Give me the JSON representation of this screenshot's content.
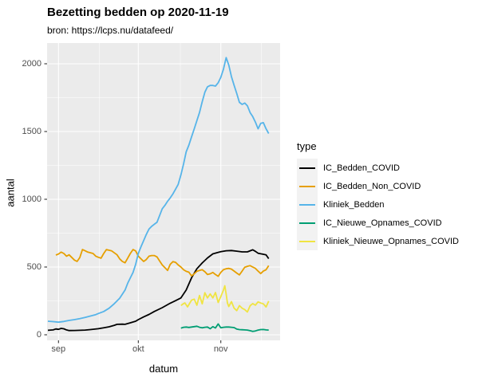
{
  "title": "Bezetting bedden op 2020-11-19",
  "subtitle": "bron: https://lcps.nu/datafeed/",
  "colors": {
    "background": "#FFFFFF",
    "panel_bg": "#EBEBEB",
    "grid": "#FFFFFF",
    "tick_mark": "#333333",
    "tick_label": "#4D4D4D",
    "legend_key_bg": "#F2F2F2",
    "text": "#000000"
  },
  "chart_data": {
    "type": "line",
    "title": "Bezetting bedden op 2020-11-19",
    "subtitle": "bron: https://lcps.nu/datafeed/",
    "xlabel": "datum",
    "ylabel": "aantal",
    "legend_title": "type",
    "legend_position": "right",
    "grid": true,
    "x_unit": "days since 2020-08-28",
    "xlim_days": [
      -0.3,
      87.3
    ],
    "ylim": [
      -40,
      2150
    ],
    "x_ticks": [
      {
        "label": "sep",
        "day": 4
      },
      {
        "label": "okt",
        "day": 34
      },
      {
        "label": "nov",
        "day": 65
      }
    ],
    "x_minor_days": [
      19.3,
      49.8,
      80.3
    ],
    "y_ticks": [
      0,
      500,
      1000,
      1500,
      2000
    ],
    "y_minor": [
      250,
      750,
      1250,
      1750
    ],
    "series": [
      {
        "name": "IC_Bedden_COVID",
        "color": "#000000",
        "points": [
          [
            0,
            33
          ],
          [
            2,
            36
          ],
          [
            3,
            43
          ],
          [
            4,
            40
          ],
          [
            5,
            47
          ],
          [
            6,
            44
          ],
          [
            7,
            36
          ],
          [
            8,
            31
          ],
          [
            10,
            32
          ],
          [
            12,
            33
          ],
          [
            14,
            35
          ],
          [
            16,
            38
          ],
          [
            19,
            45
          ],
          [
            21,
            52
          ],
          [
            23,
            59
          ],
          [
            25,
            70
          ],
          [
            26,
            77
          ],
          [
            28,
            78
          ],
          [
            29,
            77
          ],
          [
            31,
            88
          ],
          [
            33,
            100
          ],
          [
            34,
            112
          ],
          [
            36,
            132
          ],
          [
            38,
            150
          ],
          [
            40,
            172
          ],
          [
            43,
            200
          ],
          [
            46,
            233
          ],
          [
            48,
            252
          ],
          [
            50,
            272
          ],
          [
            52,
            330
          ],
          [
            54,
            420
          ],
          [
            56,
            487
          ],
          [
            58,
            530
          ],
          [
            60,
            567
          ],
          [
            62,
            597
          ],
          [
            64,
            608
          ],
          [
            65,
            613
          ],
          [
            67,
            620
          ],
          [
            69,
            622
          ],
          [
            71,
            617
          ],
          [
            73,
            612
          ],
          [
            75,
            612
          ],
          [
            77,
            627
          ],
          [
            78,
            616
          ],
          [
            79,
            602
          ],
          [
            81,
            594
          ],
          [
            82,
            590
          ],
          [
            83,
            562
          ]
        ]
      },
      {
        "name": "IC_Bedden_Non_COVID",
        "color": "#E69F00",
        "points": [
          [
            3,
            588
          ],
          [
            4,
            596
          ],
          [
            5,
            610
          ],
          [
            6,
            600
          ],
          [
            7,
            580
          ],
          [
            8,
            590
          ],
          [
            10,
            551
          ],
          [
            11,
            541
          ],
          [
            12,
            570
          ],
          [
            13,
            629
          ],
          [
            14,
            620
          ],
          [
            15,
            610
          ],
          [
            17,
            600
          ],
          [
            18,
            580
          ],
          [
            19,
            572
          ],
          [
            20,
            565
          ],
          [
            21,
            600
          ],
          [
            22,
            629
          ],
          [
            24,
            619
          ],
          [
            26,
            590
          ],
          [
            27,
            560
          ],
          [
            28,
            541
          ],
          [
            29,
            531
          ],
          [
            30,
            565
          ],
          [
            31,
            600
          ],
          [
            32,
            629
          ],
          [
            33,
            619
          ],
          [
            34,
            580
          ],
          [
            35,
            560
          ],
          [
            36,
            541
          ],
          [
            37,
            555
          ],
          [
            38,
            580
          ],
          [
            39,
            585
          ],
          [
            40,
            585
          ],
          [
            41,
            575
          ],
          [
            42,
            545
          ],
          [
            43,
            515
          ],
          [
            44,
            495
          ],
          [
            45,
            475
          ],
          [
            46,
            520
          ],
          [
            47,
            540
          ],
          [
            48,
            535
          ],
          [
            49,
            515
          ],
          [
            50,
            500
          ],
          [
            51,
            480
          ],
          [
            52,
            468
          ],
          [
            53,
            462
          ],
          [
            54,
            435
          ],
          [
            55,
            450
          ],
          [
            56,
            468
          ],
          [
            57,
            475
          ],
          [
            58,
            480
          ],
          [
            59,
            465
          ],
          [
            60,
            445
          ],
          [
            61,
            450
          ],
          [
            62,
            460
          ],
          [
            63,
            445
          ],
          [
            64,
            432
          ],
          [
            65,
            460
          ],
          [
            66,
            480
          ],
          [
            67,
            487
          ],
          [
            68,
            490
          ],
          [
            69,
            485
          ],
          [
            70,
            470
          ],
          [
            71,
            455
          ],
          [
            72,
            442
          ],
          [
            73,
            470
          ],
          [
            74,
            498
          ],
          [
            75,
            505
          ],
          [
            76,
            510
          ],
          [
            77,
            500
          ],
          [
            78,
            490
          ],
          [
            79,
            470
          ],
          [
            80,
            452
          ],
          [
            81,
            470
          ],
          [
            82,
            480
          ],
          [
            83,
            510
          ]
        ]
      },
      {
        "name": "Kliniek_Bedden",
        "color": "#56B4E9",
        "points": [
          [
            0,
            100
          ],
          [
            2,
            97
          ],
          [
            4,
            93
          ],
          [
            6,
            98
          ],
          [
            8,
            106
          ],
          [
            10,
            112
          ],
          [
            12,
            119
          ],
          [
            14,
            128
          ],
          [
            16,
            138
          ],
          [
            18,
            149
          ],
          [
            19,
            157
          ],
          [
            21,
            172
          ],
          [
            23,
            196
          ],
          [
            25,
            230
          ],
          [
            27,
            270
          ],
          [
            29,
            330
          ],
          [
            30,
            380
          ],
          [
            31,
            420
          ],
          [
            32,
            460
          ],
          [
            33,
            520
          ],
          [
            34,
            600
          ],
          [
            35,
            650
          ],
          [
            36,
            695
          ],
          [
            37,
            740
          ],
          [
            38,
            780
          ],
          [
            39,
            800
          ],
          [
            40,
            815
          ],
          [
            41,
            830
          ],
          [
            42,
            880
          ],
          [
            43,
            930
          ],
          [
            44,
            955
          ],
          [
            45,
            985
          ],
          [
            46,
            1010
          ],
          [
            47,
            1040
          ],
          [
            48,
            1075
          ],
          [
            49,
            1110
          ],
          [
            50,
            1180
          ],
          [
            51,
            1260
          ],
          [
            52,
            1350
          ],
          [
            53,
            1400
          ],
          [
            54,
            1460
          ],
          [
            55,
            1520
          ],
          [
            56,
            1580
          ],
          [
            57,
            1640
          ],
          [
            58,
            1720
          ],
          [
            59,
            1790
          ],
          [
            60,
            1830
          ],
          [
            61,
            1840
          ],
          [
            62,
            1840
          ],
          [
            63,
            1835
          ],
          [
            64,
            1860
          ],
          [
            65,
            1900
          ],
          [
            66,
            1960
          ],
          [
            67,
            2045
          ],
          [
            68,
            1990
          ],
          [
            69,
            1905
          ],
          [
            70,
            1840
          ],
          [
            71,
            1780
          ],
          [
            72,
            1715
          ],
          [
            73,
            1700
          ],
          [
            74,
            1710
          ],
          [
            75,
            1690
          ],
          [
            76,
            1640
          ],
          [
            77,
            1610
          ],
          [
            78,
            1570
          ],
          [
            79,
            1520
          ],
          [
            80,
            1560
          ],
          [
            81,
            1565
          ],
          [
            82,
            1520
          ],
          [
            83,
            1485
          ]
        ]
      },
      {
        "name": "IC_Nieuwe_Opnames_COVID",
        "color": "#009E73",
        "points": [
          [
            50,
            49
          ],
          [
            51,
            55
          ],
          [
            52,
            57
          ],
          [
            53,
            54
          ],
          [
            54,
            57
          ],
          [
            55,
            60
          ],
          [
            56,
            63
          ],
          [
            57,
            55
          ],
          [
            58,
            51
          ],
          [
            59,
            55
          ],
          [
            60,
            57
          ],
          [
            61,
            45
          ],
          [
            62,
            60
          ],
          [
            63,
            50
          ],
          [
            64,
            80
          ],
          [
            65,
            52
          ],
          [
            66,
            55
          ],
          [
            67,
            57
          ],
          [
            68,
            57
          ],
          [
            69,
            55
          ],
          [
            70,
            53
          ],
          [
            71,
            42
          ],
          [
            72,
            38
          ],
          [
            73,
            37
          ],
          [
            74,
            36
          ],
          [
            75,
            35
          ],
          [
            76,
            30
          ],
          [
            77,
            25
          ],
          [
            78,
            28
          ],
          [
            79,
            35
          ],
          [
            80,
            38
          ],
          [
            81,
            39
          ],
          [
            82,
            36
          ],
          [
            83,
            35
          ]
        ]
      },
      {
        "name": "Kliniek_Nieuwe_Opnames_COVID",
        "color": "#F0E442",
        "points": [
          [
            50,
            216
          ],
          [
            51,
            230
          ],
          [
            51.5,
            235
          ],
          [
            52.5,
            206
          ],
          [
            54,
            255
          ],
          [
            55,
            263
          ],
          [
            56,
            218
          ],
          [
            57,
            290
          ],
          [
            58,
            228
          ],
          [
            59,
            310
          ],
          [
            60,
            272
          ],
          [
            61,
            302
          ],
          [
            62,
            272
          ],
          [
            63,
            312
          ],
          [
            64,
            238
          ],
          [
            65,
            282
          ],
          [
            66,
            330
          ],
          [
            66.5,
            362
          ],
          [
            67,
            300
          ],
          [
            67.5,
            235
          ],
          [
            68,
            208
          ],
          [
            69,
            245
          ],
          [
            70,
            196
          ],
          [
            71,
            178
          ],
          [
            72,
            215
          ],
          [
            73,
            196
          ],
          [
            74,
            186
          ],
          [
            75,
            168
          ],
          [
            76,
            214
          ],
          [
            77,
            230
          ],
          [
            78,
            218
          ],
          [
            79,
            243
          ],
          [
            80,
            234
          ],
          [
            81,
            228
          ],
          [
            82,
            205
          ],
          [
            83,
            248
          ]
        ]
      }
    ]
  }
}
